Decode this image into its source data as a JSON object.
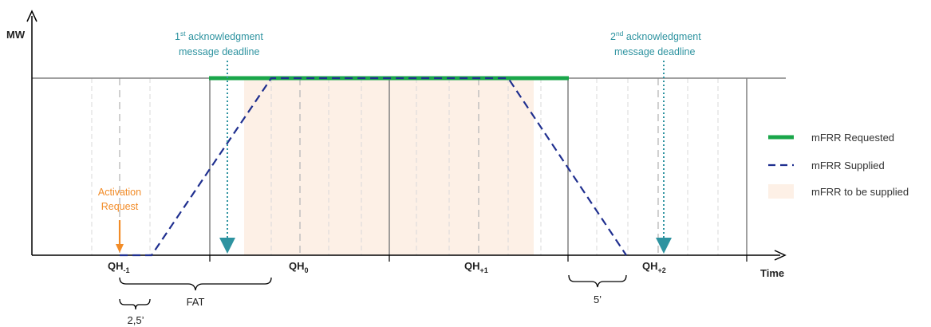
{
  "axes": {
    "y_label": "MW",
    "x_label": "Time"
  },
  "quarter_hours": {
    "qh_m1": {
      "main": "QH",
      "sub": "-1"
    },
    "qh_0": {
      "main": "QH",
      "sub": "0"
    },
    "qh_p1": {
      "main": "QH",
      "sub": "+1"
    },
    "qh_p2": {
      "main": "QH",
      "sub": "+2"
    }
  },
  "annotations": {
    "ack1": {
      "ordinal": "1",
      "suffix": "st",
      "line1_rest": " acknowledgment",
      "line2": "message deadline"
    },
    "ack2": {
      "ordinal": "2",
      "suffix": "nd",
      "line1_rest": " acknowledgment",
      "line2": "message deadline"
    },
    "activation": {
      "line1": "Activation",
      "line2": "Request"
    }
  },
  "braces": {
    "fat": "FAT",
    "five": "5’",
    "two_five": "2,5’"
  },
  "legend": {
    "requested": "mFRR Requested",
    "supplied": "mFRR Supplied",
    "to_be_supplied": "mFRR to be supplied"
  },
  "colors": {
    "requested": "#1aa64a",
    "supplied": "#1f2f8f",
    "to_be_supplied": "#fdf0e6",
    "teal_arrow": "#2e93a0",
    "activation": "#f28c28"
  }
}
